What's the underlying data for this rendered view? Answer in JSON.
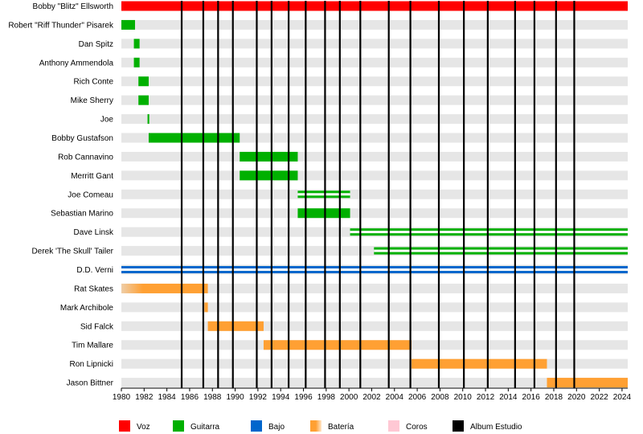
{
  "chart_data": {
    "type": "timeline",
    "title": "",
    "x_range": [
      1980,
      2024.5
    ],
    "x_ticks": [
      1980,
      1982,
      1984,
      1986,
      1988,
      1990,
      1992,
      1994,
      1996,
      1998,
      2000,
      2002,
      2004,
      2006,
      2008,
      2010,
      2012,
      2014,
      2016,
      2018,
      2020,
      2022,
      2024
    ],
    "members": [
      {
        "name": "Bobby \"Blitz\" Ellsworth",
        "segments": [
          {
            "role": "voz",
            "start": 1980,
            "end": 2024.5
          }
        ]
      },
      {
        "name": "Robert \"Riff Thunder\" Pisarek",
        "segments": [
          {
            "role": "guitarra",
            "start": 1980,
            "end": 1981.2
          }
        ]
      },
      {
        "name": "Dan Spitz",
        "segments": [
          {
            "role": "guitarra",
            "start": 1981.1,
            "end": 1981.6
          }
        ]
      },
      {
        "name": "Anthony Ammendola",
        "segments": [
          {
            "role": "guitarra",
            "start": 1981.1,
            "end": 1981.6
          }
        ]
      },
      {
        "name": "Rich Conte",
        "segments": [
          {
            "role": "guitarra",
            "start": 1981.5,
            "end": 1982.4
          }
        ]
      },
      {
        "name": "Mike Sherry",
        "segments": [
          {
            "role": "guitarra",
            "start": 1981.5,
            "end": 1982.4
          }
        ]
      },
      {
        "name": "Joe",
        "segments": [
          {
            "role": "guitarra",
            "start": 1982.3,
            "end": 1982.45
          }
        ]
      },
      {
        "name": "Bobby Gustafson",
        "segments": [
          {
            "role": "guitarra",
            "start": 1982.4,
            "end": 1990.4
          }
        ]
      },
      {
        "name": "Rob Cannavino",
        "segments": [
          {
            "role": "guitarra",
            "start": 1990.4,
            "end": 1995.5
          }
        ]
      },
      {
        "name": "Merritt Gant",
        "segments": [
          {
            "role": "guitarra",
            "start": 1990.4,
            "end": 1995.5
          }
        ]
      },
      {
        "name": "Joe Comeau",
        "segments": [
          {
            "role": "guitarra",
            "start": 1995.5,
            "end": 2000.1
          },
          {
            "role": "coros",
            "start": 1995.5,
            "end": 2000.1
          }
        ]
      },
      {
        "name": "Sebastian Marino",
        "segments": [
          {
            "role": "guitarra",
            "start": 1995.5,
            "end": 2000.1
          }
        ]
      },
      {
        "name": "Dave Linsk",
        "segments": [
          {
            "role": "guitarra",
            "start": 2000.1,
            "end": 2024.5
          },
          {
            "role": "coros",
            "start": 2000.1,
            "end": 2024.5
          }
        ]
      },
      {
        "name": "Derek 'The Skull' Tailer",
        "segments": [
          {
            "role": "guitarra",
            "start": 2002.2,
            "end": 2024.5
          },
          {
            "role": "coros",
            "start": 2002.2,
            "end": 2024.5
          }
        ]
      },
      {
        "name": "D.D. Verni",
        "segments": [
          {
            "role": "bajo",
            "start": 1980,
            "end": 2024.5
          },
          {
            "role": "coros",
            "start": 1980,
            "end": 2024.5
          }
        ]
      },
      {
        "name": "Rat Skates",
        "segments": [
          {
            "role": "bateria",
            "start": 1980,
            "end": 1987.6
          }
        ]
      },
      {
        "name": "Mark Archibole",
        "segments": [
          {
            "role": "bateria",
            "start": 1987.3,
            "end": 1987.6
          }
        ]
      },
      {
        "name": "Sid Falck",
        "segments": [
          {
            "role": "bateria",
            "start": 1987.6,
            "end": 1992.5
          }
        ]
      },
      {
        "name": "Tim Mallare",
        "segments": [
          {
            "role": "bateria",
            "start": 1992.5,
            "end": 2005.5
          }
        ]
      },
      {
        "name": "Ron Lipnicki",
        "segments": [
          {
            "role": "bateria",
            "start": 2005.5,
            "end": 2017.4
          }
        ]
      },
      {
        "name": "Jason Bittner",
        "segments": [
          {
            "role": "bateria",
            "start": 2017.4,
            "end": 2024.5
          }
        ]
      }
    ],
    "albums": [
      1985.3,
      1987.2,
      1988.5,
      1989.8,
      1991.9,
      1993.2,
      1994.7,
      1996.2,
      1997.9,
      1999.2,
      2001.0,
      2003.5,
      2005.4,
      2007.9,
      2010.1,
      2012.2,
      2014.6,
      2016.3,
      2018.2,
      2019.8
    ],
    "legend": [
      {
        "key": "voz",
        "label": "Voz"
      },
      {
        "key": "guitarra",
        "label": "Guitarra"
      },
      {
        "key": "bajo",
        "label": "Bajo"
      },
      {
        "key": "bateria",
        "label": "Batería"
      },
      {
        "key": "coros",
        "label": "Coros"
      },
      {
        "key": "album",
        "label": "Album Estudio"
      }
    ],
    "colors": {
      "voz": "#ff0000",
      "guitarra": "#00b000",
      "bajo": "#0066cc",
      "bateria": "#ffa033",
      "coros": "#ffc8d4",
      "album": "#000000",
      "row_band": "#e6e6e6"
    }
  }
}
